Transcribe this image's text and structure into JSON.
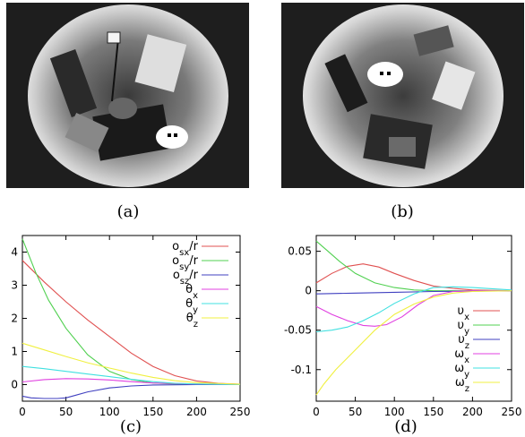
{
  "panels": {
    "a": {
      "label": "(a)"
    },
    "b": {
      "label": "(b)"
    },
    "c": {
      "label": "(c)"
    },
    "d": {
      "label": "(d)"
    }
  },
  "photos": {
    "a": {
      "description_icon": "fisheye-camera-image"
    },
    "b": {
      "description_icon": "fisheye-camera-image"
    }
  },
  "chart_data": [
    {
      "id": "c",
      "type": "line",
      "title": "",
      "xlabel": "",
      "ylabel": "",
      "xlim": [
        0,
        250
      ],
      "ylim": [
        -0.5,
        4.5
      ],
      "xticks": [
        0,
        50,
        100,
        150,
        200,
        250
      ],
      "yticks": [
        0,
        1,
        2,
        3,
        4
      ],
      "grid": false,
      "legend": "top-right",
      "series": [
        {
          "name": "o",
          "sub": "sx",
          "suffix": "/r",
          "color": "#e05050",
          "x": [
            0,
            25,
            50,
            75,
            100,
            125,
            150,
            175,
            200,
            225,
            250
          ],
          "y": [
            3.75,
            3.1,
            2.5,
            1.95,
            1.45,
            0.95,
            0.55,
            0.27,
            0.11,
            0.04,
            0.01
          ]
        },
        {
          "name": "o",
          "sub": "sy",
          "suffix": "/r",
          "color": "#50d050",
          "x": [
            0,
            15,
            30,
            50,
            75,
            100,
            125,
            150,
            175,
            200,
            250
          ],
          "y": [
            4.4,
            3.4,
            2.55,
            1.7,
            0.9,
            0.4,
            0.15,
            0.05,
            0.02,
            0.01,
            0.0
          ]
        },
        {
          "name": "o",
          "sub": "sz",
          "suffix": "/r",
          "color": "#4040c0",
          "x": [
            0,
            10,
            25,
            40,
            50,
            60,
            75,
            100,
            125,
            150,
            200,
            250
          ],
          "y": [
            -0.35,
            -0.4,
            -0.42,
            -0.42,
            -0.4,
            -0.33,
            -0.22,
            -0.1,
            -0.04,
            -0.01,
            0.0,
            0.0
          ]
        },
        {
          "name": "θ",
          "sub": "x",
          "suffix": "",
          "color": "#e040e0",
          "x": [
            0,
            25,
            50,
            75,
            100,
            125,
            150,
            200,
            250
          ],
          "y": [
            0.08,
            0.15,
            0.18,
            0.17,
            0.14,
            0.09,
            0.05,
            0.02,
            0.0
          ]
        },
        {
          "name": "θ",
          "sub": "y",
          "suffix": "",
          "color": "#40e0e0",
          "x": [
            0,
            25,
            50,
            75,
            100,
            125,
            150,
            175,
            200,
            250
          ],
          "y": [
            0.55,
            0.48,
            0.4,
            0.32,
            0.24,
            0.16,
            0.09,
            0.04,
            0.02,
            0.0
          ]
        },
        {
          "name": "θ",
          "sub": "z",
          "suffix": "",
          "color": "#f0f040",
          "x": [
            0,
            25,
            50,
            75,
            100,
            125,
            150,
            175,
            200,
            250
          ],
          "y": [
            1.25,
            1.05,
            0.85,
            0.66,
            0.5,
            0.35,
            0.22,
            0.12,
            0.06,
            0.01
          ]
        }
      ]
    },
    {
      "id": "d",
      "type": "line",
      "title": "",
      "xlabel": "",
      "ylabel": "",
      "xlim": [
        0,
        250
      ],
      "ylim": [
        -0.14,
        0.07
      ],
      "xticks": [
        0,
        50,
        100,
        150,
        200,
        250
      ],
      "yticks": [
        0.05,
        0,
        -0.05,
        -0.1
      ],
      "ytick_labels": [
        "0.05",
        "0",
        "-0.05",
        "-0.1"
      ],
      "grid": false,
      "legend": "bottom-right",
      "series": [
        {
          "name": "υ",
          "sub": "x",
          "suffix": "",
          "color": "#e05050",
          "x": [
            0,
            20,
            40,
            60,
            80,
            100,
            125,
            150,
            175,
            200,
            250
          ],
          "y": [
            0.01,
            0.022,
            0.031,
            0.034,
            0.03,
            0.022,
            0.013,
            0.006,
            0.003,
            0.001,
            0.0
          ]
        },
        {
          "name": "υ",
          "sub": "y",
          "suffix": "",
          "color": "#50d050",
          "x": [
            0,
            15,
            30,
            50,
            75,
            100,
            125,
            150,
            200,
            250
          ],
          "y": [
            0.063,
            0.05,
            0.037,
            0.022,
            0.01,
            0.004,
            0.001,
            0.0,
            0.0,
            0.0
          ]
        },
        {
          "name": "υ",
          "sub": "z",
          "suffix": "",
          "color": "#4040c0",
          "x": [
            0,
            50,
            100,
            150,
            200,
            250
          ],
          "y": [
            -0.004,
            -0.003,
            -0.002,
            -0.001,
            -0.0005,
            0.0
          ]
        },
        {
          "name": "ω",
          "sub": "x",
          "suffix": "",
          "color": "#e040e0",
          "x": [
            0,
            20,
            40,
            60,
            75,
            90,
            110,
            130,
            150,
            175,
            200,
            250
          ],
          "y": [
            -0.02,
            -0.03,
            -0.038,
            -0.044,
            -0.045,
            -0.043,
            -0.033,
            -0.018,
            -0.006,
            -0.001,
            0.0,
            0.0
          ]
        },
        {
          "name": "ω",
          "sub": "y",
          "suffix": "",
          "color": "#40e0e0",
          "x": [
            0,
            20,
            40,
            60,
            80,
            100,
            125,
            150,
            175,
            200,
            250
          ],
          "y": [
            -0.052,
            -0.05,
            -0.046,
            -0.038,
            -0.028,
            -0.016,
            -0.004,
            0.004,
            0.005,
            0.004,
            0.001
          ]
        },
        {
          "name": "ω",
          "sub": "z",
          "suffix": "",
          "color": "#f0f040",
          "x": [
            0,
            10,
            25,
            50,
            75,
            100,
            125,
            150,
            175,
            200,
            250
          ],
          "y": [
            -0.132,
            -0.118,
            -0.1,
            -0.075,
            -0.05,
            -0.03,
            -0.017,
            -0.008,
            -0.003,
            -0.001,
            0.0
          ]
        }
      ]
    }
  ]
}
